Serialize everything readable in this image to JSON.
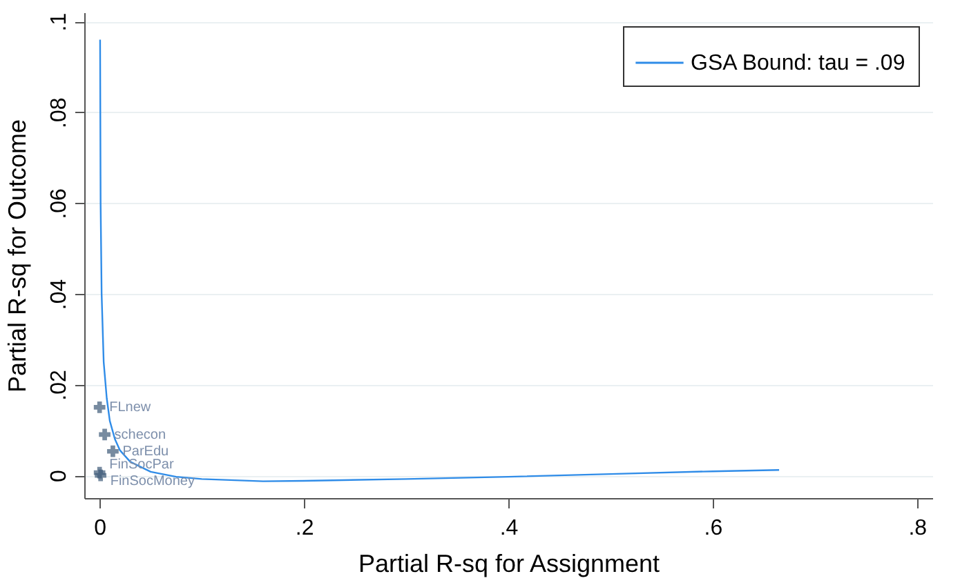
{
  "chart_data": {
    "type": "line",
    "xlabel": "Partial R-sq for Assignment",
    "ylabel": "Partial R-sq for Outcome",
    "xlim": [
      -0.015,
      0.815
    ],
    "ylim": [
      -0.005,
      0.102
    ],
    "xticks": [
      {
        "value": 0,
        "label": "0"
      },
      {
        "value": 0.2,
        "label": ".2"
      },
      {
        "value": 0.4,
        "label": ".4"
      },
      {
        "value": 0.6,
        "label": ".6"
      },
      {
        "value": 0.8,
        "label": ".8"
      }
    ],
    "yticks": [
      {
        "value": 0,
        "label": "0"
      },
      {
        "value": 0.02,
        "label": ".02"
      },
      {
        "value": 0.04,
        "label": ".04"
      },
      {
        "value": 0.06,
        "label": ".06"
      },
      {
        "value": 0.08,
        "label": ".08"
      },
      {
        "value": 0.1,
        "label": ".1"
      }
    ],
    "grid": "y",
    "legend": "top right",
    "series": [
      {
        "name": "GSA Bound: tau = .09",
        "color": "#2f8ce8",
        "marker": "none",
        "x": [
          0.0005,
          0.001,
          0.002,
          0.004,
          0.007,
          0.01,
          0.015,
          0.02,
          0.03,
          0.05,
          0.075,
          0.1,
          0.16,
          0.2,
          0.3,
          0.4,
          0.5,
          0.6,
          0.665
        ],
        "values": [
          0.096,
          0.06,
          0.04,
          0.025,
          0.017,
          0.012,
          0.008,
          0.0055,
          0.003,
          0.0008,
          -0.0003,
          -0.0008,
          -0.0013,
          -0.0012,
          -0.0008,
          -0.0003,
          0.0003,
          0.0009,
          0.0012
        ]
      },
      {
        "type": "scatter",
        "color": "#3d5a78",
        "marker": "cross",
        "x": [
          0.0,
          0.005,
          0.013,
          0.0,
          0.001
        ],
        "values": [
          0.015,
          0.009,
          0.0053,
          0.0006,
          0.0
        ]
      }
    ],
    "annotations": [
      {
        "text": "FLnew",
        "x": 0.0,
        "y": 0.015
      },
      {
        "text": "schecon",
        "x": 0.005,
        "y": 0.009
      },
      {
        "text": "ParEdu",
        "x": 0.013,
        "y": 0.0053
      },
      {
        "text": "FinSocPar",
        "x": 0.0,
        "y": 0.0006
      },
      {
        "text": "FinSocMoney",
        "x": 0.001,
        "y": 0.0
      }
    ]
  }
}
